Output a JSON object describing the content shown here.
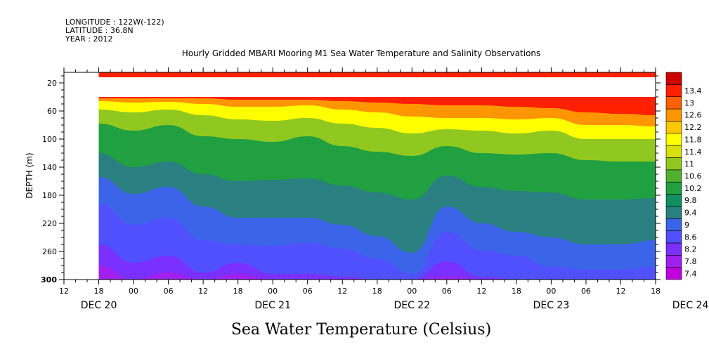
{
  "header": {
    "longitude": "LONGITUDE : 122W(-122)",
    "latitude": "LATITUDE : 36.8N",
    "year": "YEAR : 2012"
  },
  "caption": "Sea Water Temperature (Celsius)",
  "chart_data": {
    "type": "heatmap",
    "title": "Hourly Gridded MBARI Mooring M1 Sea Water Temperature and Salinity Observations",
    "ylabel": "DEPTH (m)",
    "xlabel": "",
    "x_axis": {
      "start": "2012-12-20 12:00",
      "end": "2012-12-24 18:00",
      "hour_labels": [
        "12",
        "18",
        "00",
        "06",
        "12",
        "18",
        "00",
        "06",
        "12",
        "18",
        "00",
        "06",
        "12",
        "18",
        "00",
        "06",
        "12",
        "18"
      ],
      "date_labels": [
        "DEC 20",
        "DEC 21",
        "DEC 22",
        "DEC 23",
        "DEC 24"
      ],
      "data_start": "2012-12-20 18:00"
    },
    "y_axis": {
      "range": [
        5,
        300
      ],
      "inverted": true,
      "ticks": [
        20,
        60,
        100,
        140,
        180,
        220,
        260,
        300
      ]
    },
    "colorbar": {
      "levels": [
        7.4,
        7.8,
        8.2,
        8.6,
        9,
        9.4,
        9.8,
        10.2,
        10.6,
        11,
        11.4,
        11.8,
        12.2,
        12.6,
        13,
        13.4
      ],
      "labels": [
        "7.4",
        "7.8",
        "8.2",
        "8.6",
        "9",
        "9.4",
        "9.8",
        "10.2",
        "10.6",
        "11",
        "11.4",
        "11.8",
        "12.2",
        "12.6",
        "13",
        "13.4"
      ],
      "colors": [
        "#c000e0",
        "#a020f0",
        "#7a30ff",
        "#5050ff",
        "#3c64e8",
        "#2a8080",
        "#109060",
        "#20a040",
        "#50b030",
        "#90c820",
        "#d8e010",
        "#ffff00",
        "#ffc800",
        "#ff9600",
        "#ff6000",
        "#ff2000",
        "#cc0000"
      ]
    },
    "surface_band": {
      "depth_top": 5,
      "depth_bottom": 12,
      "temperature": 13.3
    },
    "missing_band": {
      "depth_top": 12,
      "depth_bottom": 40
    },
    "isotherm_depths": {
      "times": [
        "2012-12-20 18:00",
        "2012-12-21 00:00",
        "2012-12-21 06:00",
        "2012-12-21 12:00",
        "2012-12-21 18:00",
        "2012-12-22 00:00",
        "2012-12-22 06:00",
        "2012-12-22 12:00",
        "2012-12-22 18:00",
        "2012-12-23 00:00",
        "2012-12-23 06:00",
        "2012-12-23 12:00",
        "2012-12-23 18:00",
        "2012-12-24 00:00",
        "2012-12-24 06:00",
        "2012-12-24 12:00",
        "2012-12-24 18:00"
      ],
      "series": [
        {
          "temperature": 12.6,
          "depths": [
            42,
            42,
            42,
            42,
            44,
            44,
            44,
            46,
            48,
            50,
            52,
            52,
            54,
            56,
            62,
            64,
            66
          ]
        },
        {
          "temperature": 11.8,
          "depths": [
            46,
            48,
            47,
            50,
            54,
            54,
            52,
            58,
            62,
            68,
            70,
            70,
            72,
            70,
            80,
            80,
            82
          ]
        },
        {
          "temperature": 11.0,
          "depths": [
            58,
            62,
            58,
            66,
            72,
            74,
            70,
            78,
            84,
            92,
            86,
            88,
            92,
            88,
            100,
            100,
            100
          ]
        },
        {
          "temperature": 10.2,
          "depths": [
            78,
            88,
            80,
            96,
            100,
            104,
            96,
            110,
            118,
            124,
            110,
            120,
            122,
            120,
            130,
            132,
            132
          ]
        },
        {
          "temperature": 9.4,
          "depths": [
            120,
            140,
            132,
            150,
            160,
            158,
            156,
            166,
            176,
            186,
            152,
            168,
            174,
            176,
            186,
            186,
            184
          ]
        },
        {
          "temperature": 9.0,
          "depths": [
            154,
            178,
            168,
            196,
            212,
            212,
            212,
            222,
            238,
            262,
            196,
            220,
            232,
            240,
            250,
            250,
            244
          ]
        },
        {
          "temperature": 8.6,
          "depths": [
            192,
            222,
            212,
            244,
            250,
            252,
            248,
            256,
            270,
            292,
            232,
            258,
            266,
            282,
            286,
            286,
            282
          ]
        },
        {
          "temperature": 8.2,
          "depths": [
            250,
            276,
            266,
            290,
            276,
            292,
            292,
            296,
            300,
            300,
            274,
            296,
            300,
            300,
            300,
            300,
            300
          ]
        },
        {
          "temperature": 7.8,
          "depths": [
            280,
            300,
            290,
            300,
            292,
            300,
            300,
            300,
            300,
            300,
            296,
            300,
            300,
            300,
            300,
            300,
            300
          ]
        }
      ]
    }
  }
}
